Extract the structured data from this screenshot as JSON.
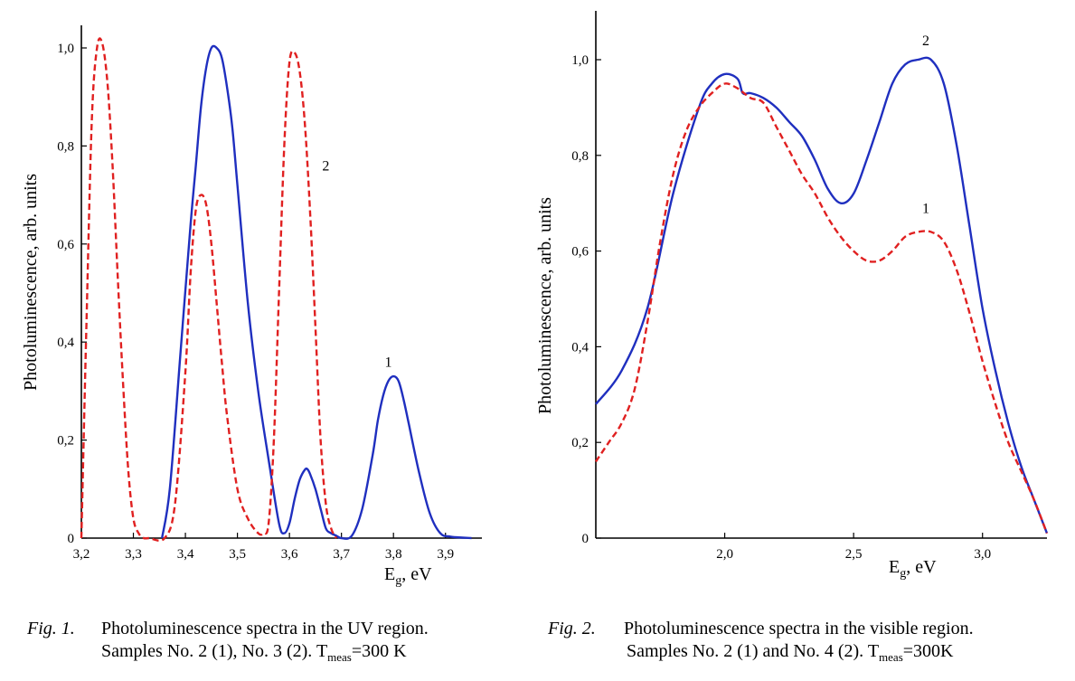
{
  "chart_data": [
    {
      "type": "line",
      "ylabel": "Photoluminescence, arb. units",
      "xlabel_main": "E",
      "xlabel_sub": "g",
      "xlabel_unit": ", eV",
      "xlim": [
        3.2,
        3.97
      ],
      "ylim": [
        0,
        1.0
      ],
      "x_ticks": [
        "3,2",
        "3,3",
        "3,4",
        "3,5",
        "3,6",
        "3,7",
        "3,8",
        "3,9"
      ],
      "x_tick_values": [
        3.2,
        3.3,
        3.4,
        3.5,
        3.6,
        3.7,
        3.8,
        3.9
      ],
      "y_ticks": [
        "0",
        "0,2",
        "0,4",
        "0,6",
        "0,8",
        "1,0"
      ],
      "y_tick_values": [
        0,
        0.2,
        0.4,
        0.6,
        0.8,
        1.0
      ],
      "grid": false,
      "series": [
        {
          "name": "1",
          "color": "#1f2fbf",
          "style": "solid",
          "label_at": [
            3.79,
            0.35
          ],
          "x": [
            3.355,
            3.37,
            3.39,
            3.41,
            3.42,
            3.43,
            3.44,
            3.45,
            3.46,
            3.47,
            3.48,
            3.49,
            3.5,
            3.52,
            3.54,
            3.56,
            3.58,
            3.59,
            3.6,
            3.61,
            3.62,
            3.63,
            3.635,
            3.64,
            3.65,
            3.66,
            3.67,
            3.68,
            3.69,
            3.7,
            3.72,
            3.74,
            3.76,
            3.77,
            3.78,
            3.79,
            3.8,
            3.81,
            3.82,
            3.83,
            3.85,
            3.87,
            3.89,
            3.91,
            3.95
          ],
          "y": [
            0,
            0.1,
            0.37,
            0.64,
            0.76,
            0.88,
            0.96,
            1.0,
            1.0,
            0.98,
            0.92,
            0.84,
            0.72,
            0.48,
            0.3,
            0.16,
            0.03,
            0.01,
            0.03,
            0.08,
            0.12,
            0.14,
            0.14,
            0.13,
            0.1,
            0.06,
            0.02,
            0.01,
            0.005,
            0,
            0.005,
            0.06,
            0.17,
            0.24,
            0.29,
            0.32,
            0.33,
            0.32,
            0.28,
            0.23,
            0.13,
            0.05,
            0.01,
            0.003,
            0
          ]
        },
        {
          "name": "2",
          "color": "#e02020",
          "style": "dashed",
          "label_at": [
            3.67,
            0.75
          ],
          "x": [
            3.2,
            3.21,
            3.22,
            3.23,
            3.24,
            3.25,
            3.26,
            3.27,
            3.28,
            3.29,
            3.3,
            3.31,
            3.32,
            3.33,
            3.36,
            3.38,
            3.4,
            3.41,
            3.42,
            3.43,
            3.44,
            3.45,
            3.46,
            3.47,
            3.48,
            3.5,
            3.52,
            3.54,
            3.55,
            3.56,
            3.57,
            3.58,
            3.59,
            3.6,
            3.61,
            3.62,
            3.63,
            3.64,
            3.65,
            3.66,
            3.67,
            3.68,
            3.69
          ],
          "y": [
            0,
            0.45,
            0.85,
            1.0,
            1.01,
            0.93,
            0.76,
            0.53,
            0.32,
            0.14,
            0.04,
            0.01,
            0,
            0,
            0,
            0.07,
            0.34,
            0.54,
            0.67,
            0.7,
            0.68,
            0.6,
            0.48,
            0.36,
            0.25,
            0.1,
            0.04,
            0.01,
            0.01,
            0.03,
            0.2,
            0.5,
            0.8,
            0.97,
            0.99,
            0.95,
            0.84,
            0.66,
            0.43,
            0.2,
            0.07,
            0.02,
            0
          ]
        }
      ]
    },
    {
      "type": "line",
      "ylabel": "Photoluminescence, arb. units",
      "xlabel_main": "E",
      "xlabel_sub": "g",
      "xlabel_unit": ", eV",
      "xlim": [
        1.5,
        3.25
      ],
      "ylim": [
        0,
        1.0
      ],
      "x_ticks": [
        "2,0",
        "2,5",
        "3,0"
      ],
      "x_tick_values": [
        2.0,
        2.5,
        3.0
      ],
      "y_ticks": [
        "0",
        "0,2",
        "0,4",
        "0,6",
        "0,8",
        "1,0"
      ],
      "y_tick_values": [
        0,
        0.2,
        0.4,
        0.6,
        0.8,
        1.0
      ],
      "grid": false,
      "series": [
        {
          "name": "2",
          "color": "#1f2fbf",
          "style": "solid",
          "label_at": [
            2.78,
            1.03
          ],
          "x": [
            1.5,
            1.6,
            1.7,
            1.8,
            1.9,
            1.95,
            2.0,
            2.05,
            2.07,
            2.1,
            2.15,
            2.2,
            2.25,
            2.3,
            2.35,
            2.4,
            2.45,
            2.5,
            2.55,
            2.6,
            2.65,
            2.7,
            2.75,
            2.8,
            2.85,
            2.9,
            2.95,
            3.0,
            3.05,
            3.1,
            3.15,
            3.2,
            3.25
          ],
          "y": [
            0.28,
            0.35,
            0.48,
            0.72,
            0.9,
            0.95,
            0.97,
            0.96,
            0.93,
            0.93,
            0.92,
            0.9,
            0.87,
            0.84,
            0.79,
            0.73,
            0.7,
            0.72,
            0.79,
            0.87,
            0.95,
            0.99,
            1.0,
            1.0,
            0.95,
            0.82,
            0.65,
            0.48,
            0.35,
            0.24,
            0.15,
            0.08,
            0.01
          ]
        },
        {
          "name": "1",
          "color": "#e02020",
          "style": "dashed",
          "label_at": [
            2.78,
            0.68
          ],
          "x": [
            1.5,
            1.55,
            1.6,
            1.65,
            1.7,
            1.75,
            1.8,
            1.85,
            1.9,
            1.95,
            2.0,
            2.05,
            2.1,
            2.15,
            2.2,
            2.25,
            2.3,
            2.35,
            2.4,
            2.45,
            2.5,
            2.55,
            2.6,
            2.65,
            2.7,
            2.75,
            2.8,
            2.85,
            2.9,
            2.95,
            3.0,
            3.05,
            3.1,
            3.15,
            3.2,
            3.25
          ],
          "y": [
            0.16,
            0.2,
            0.24,
            0.31,
            0.45,
            0.62,
            0.76,
            0.85,
            0.9,
            0.93,
            0.95,
            0.94,
            0.92,
            0.91,
            0.86,
            0.81,
            0.76,
            0.72,
            0.67,
            0.63,
            0.6,
            0.58,
            0.58,
            0.6,
            0.63,
            0.64,
            0.64,
            0.62,
            0.56,
            0.47,
            0.37,
            0.28,
            0.2,
            0.14,
            0.08,
            0.01
          ]
        }
      ]
    }
  ],
  "captions": [
    {
      "fig": "Fig. 1.",
      "line1": "Photoluminescence spectra in the UV region.",
      "line2_pre": "Samples No. 2 (1), No. 3 (2). T",
      "line2_sub": "meas",
      "line2_post": "=300 K"
    },
    {
      "fig": "Fig. 2.",
      "line1": "Photoluminescence spectra in the visible  region.",
      "line2_pre": "Samples No. 2 (1) and No. 4 (2). T",
      "line2_sub": "meas",
      "line2_post": "=300K"
    }
  ]
}
